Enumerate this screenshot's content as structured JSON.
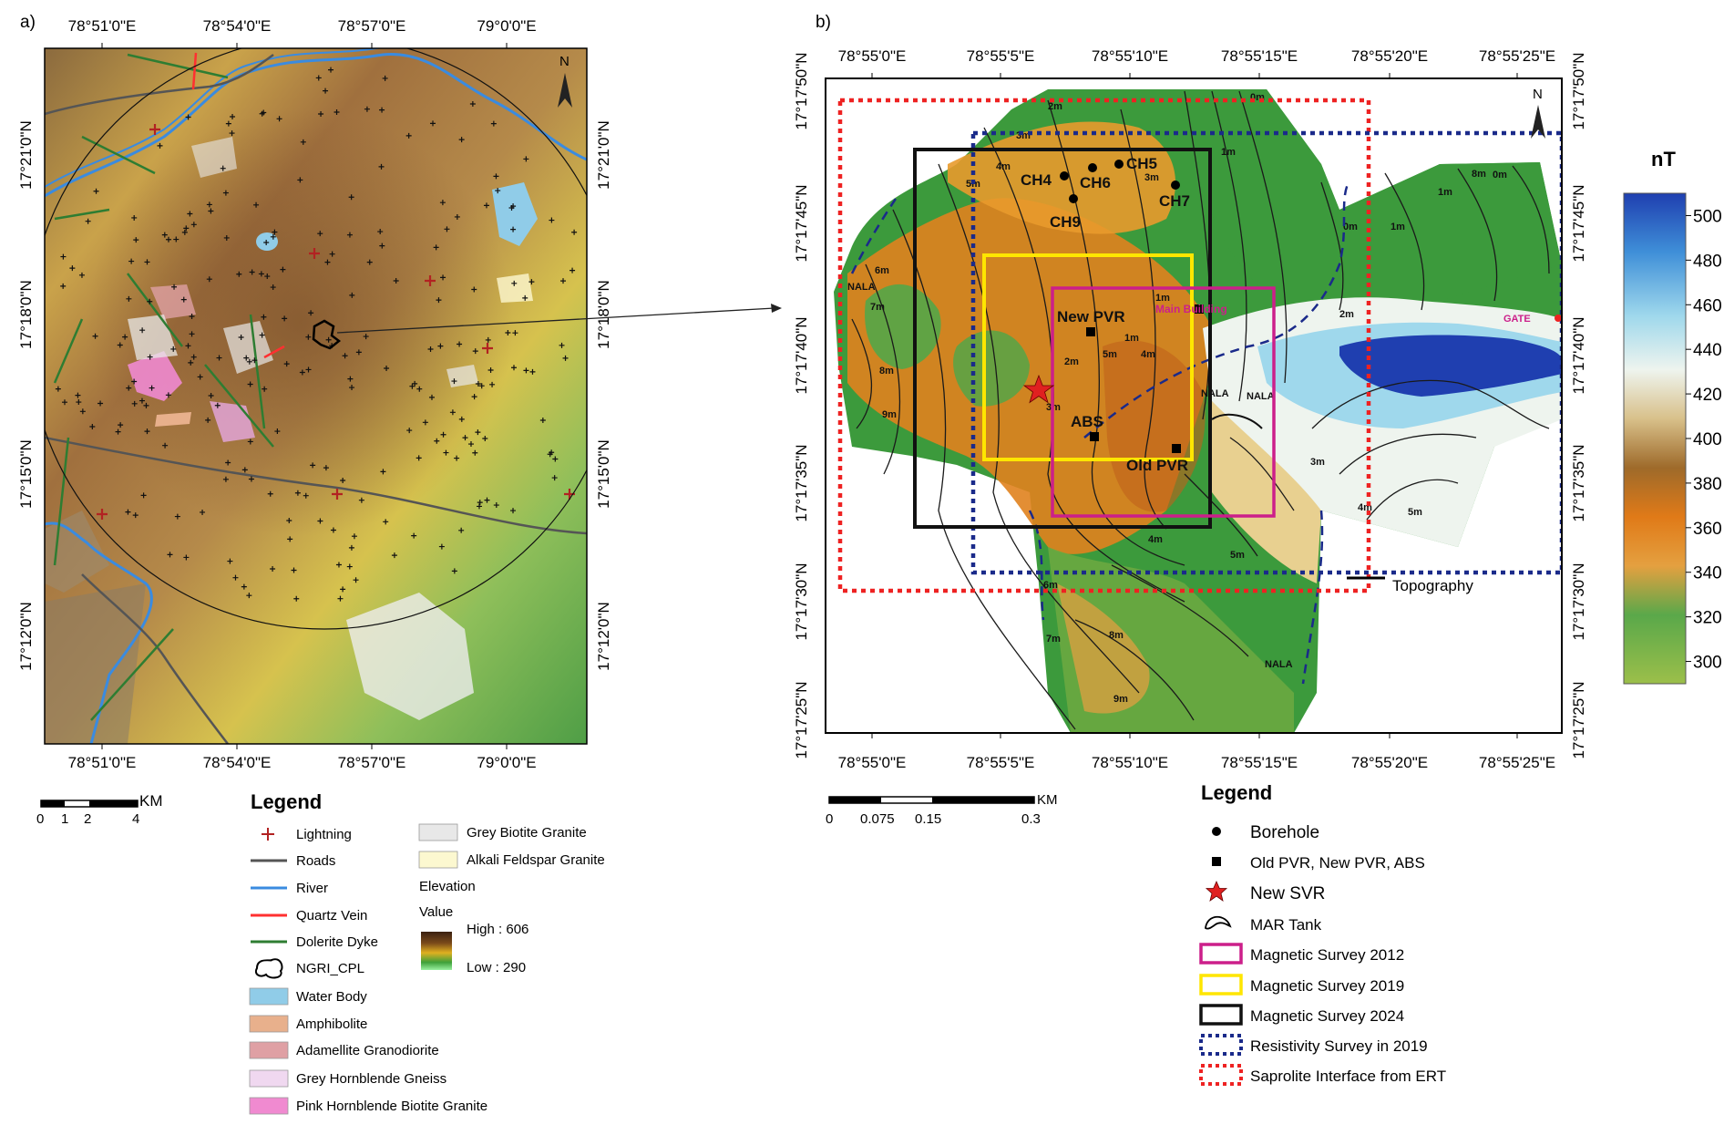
{
  "panel_a": {
    "label": "a)",
    "top_ticks": [
      "78°51'0\"E",
      "78°54'0\"E",
      "78°57'0\"E",
      "79°0'0\"E"
    ],
    "bottom_ticks": [
      "78°51'0\"E",
      "78°54'0\"E",
      "78°57'0\"E",
      "79°0'0\"E"
    ],
    "left_ticks": [
      "17°21'0\"N",
      "17°18'0\"N",
      "17°15'0\"N",
      "17°12'0\"N"
    ],
    "right_ticks": [
      "17°21'0\"N",
      "17°18'0\"N",
      "17°15'0\"N",
      "17°12'0\"N"
    ],
    "north": "N",
    "scale": {
      "unit": "KM",
      "ticks": [
        "0",
        "1",
        "2",
        "4"
      ]
    },
    "legend_title": "Legend",
    "legend_items": [
      {
        "label": "Lightning",
        "kind": "plus",
        "color": "#b22222"
      },
      {
        "label": "Roads",
        "kind": "line",
        "color": "#555555"
      },
      {
        "label": "River",
        "kind": "line",
        "color": "#3a8be0"
      },
      {
        "label": "Quartz Vein",
        "kind": "line",
        "color": "#ff3030"
      },
      {
        "label": "Dolerite Dyke",
        "kind": "line",
        "color": "#2e7d32"
      },
      {
        "label": "NGRI_CPL",
        "kind": "outline",
        "color": "#000000"
      },
      {
        "label": "Water Body",
        "kind": "box",
        "color": "#90cce8"
      },
      {
        "label": "Amphibolite",
        "kind": "box",
        "color": "#e8b08c"
      },
      {
        "label": "Adamellite Granodiorite",
        "kind": "box",
        "color": "#dfa0a4"
      },
      {
        "label": "Grey Hornblende Gneiss",
        "kind": "box",
        "color": "#f0d8f0"
      },
      {
        "label": "Pink Hornblende Biotite Granite",
        "kind": "box",
        "color": "#f08ad0"
      }
    ],
    "legend_items_right": [
      {
        "label": "Grey Biotite Granite",
        "kind": "box",
        "color": "#e8e8e8"
      },
      {
        "label": "Alkali Feldspar Granite",
        "kind": "box",
        "color": "#fcf8d0"
      }
    ],
    "elevation_label": "Elevation",
    "value_label": "Value",
    "high_label": "High : 606",
    "low_label": "Low : 290"
  },
  "panel_b": {
    "label": "b)",
    "top_ticks": [
      "78°55'0\"E",
      "78°55'5\"E",
      "78°55'10\"E",
      "78°55'15\"E",
      "78°55'20\"E",
      "78°55'25\"E"
    ],
    "bottom_ticks": [
      "78°55'0\"E",
      "78°55'5\"E",
      "78°55'10\"E",
      "78°55'15\"E",
      "78°55'20\"E",
      "78°55'25\"E"
    ],
    "left_ticks": [
      "17°17'50\"N",
      "17°17'45\"N",
      "17°17'40\"N",
      "17°17'35\"N",
      "17°17'30\"N",
      "17°17'25\"N"
    ],
    "right_ticks": [
      "17°17'50\"N",
      "17°17'45\"N",
      "17°17'40\"N",
      "17°17'35\"N",
      "17°17'30\"N",
      "17°17'25\"N"
    ],
    "north": "N",
    "boreholes": [
      "CH4",
      "CH6",
      "CH5",
      "CH7",
      "CH9"
    ],
    "structures": {
      "new_pvr": "New PVR",
      "abs": "ABS",
      "old_pvr": "Old PVR",
      "main_building": "Main Building",
      "gate": "GATE"
    },
    "contour_labels": [
      "0m",
      "1m",
      "2m",
      "3m",
      "4m",
      "5m",
      "6m",
      "7m",
      "8m",
      "9m",
      "3m",
      "4m",
      "5m",
      "1m",
      "2m",
      "3m",
      "4m",
      "5m",
      "8m",
      "9m",
      "0m",
      "1m",
      "1m",
      "2m",
      "3m",
      "4m",
      "5m",
      "6m",
      "7m",
      "8m",
      "0m",
      "1m"
    ],
    "nala_labels": [
      "NALA",
      "NALA",
      "NALA",
      "NALA"
    ],
    "topography_label": "Topography",
    "scale": {
      "unit": "KM",
      "ticks": [
        "0",
        "0.075",
        "0.15",
        "0.3"
      ]
    },
    "legend_title": "Legend",
    "legend_items": [
      {
        "label": "Borehole",
        "kind": "dot"
      },
      {
        "label": "Old PVR, New PVR, ABS",
        "kind": "square"
      },
      {
        "label": "New SVR",
        "kind": "star"
      },
      {
        "label": "MAR Tank",
        "kind": "tank"
      },
      {
        "label": "Magnetic Survey 2012",
        "kind": "rect",
        "color": "#cc1f8a"
      },
      {
        "label": "Magnetic Survey 2019",
        "kind": "rect",
        "color": "#ffe600"
      },
      {
        "label": "Magnetic Survey 2024",
        "kind": "rect",
        "color": "#111111"
      },
      {
        "label": "Resistivity Survey in 2019",
        "kind": "dotted",
        "color": "#1a2a8a"
      },
      {
        "label": "Saprolite Interface from ERT",
        "kind": "dotted",
        "color": "#ee2222"
      }
    ]
  },
  "colorbar": {
    "unit": "nT",
    "ticks": [
      "500",
      "480",
      "460",
      "440",
      "420",
      "400",
      "380",
      "360",
      "340",
      "320",
      "300"
    ],
    "range": [
      290,
      510
    ]
  }
}
